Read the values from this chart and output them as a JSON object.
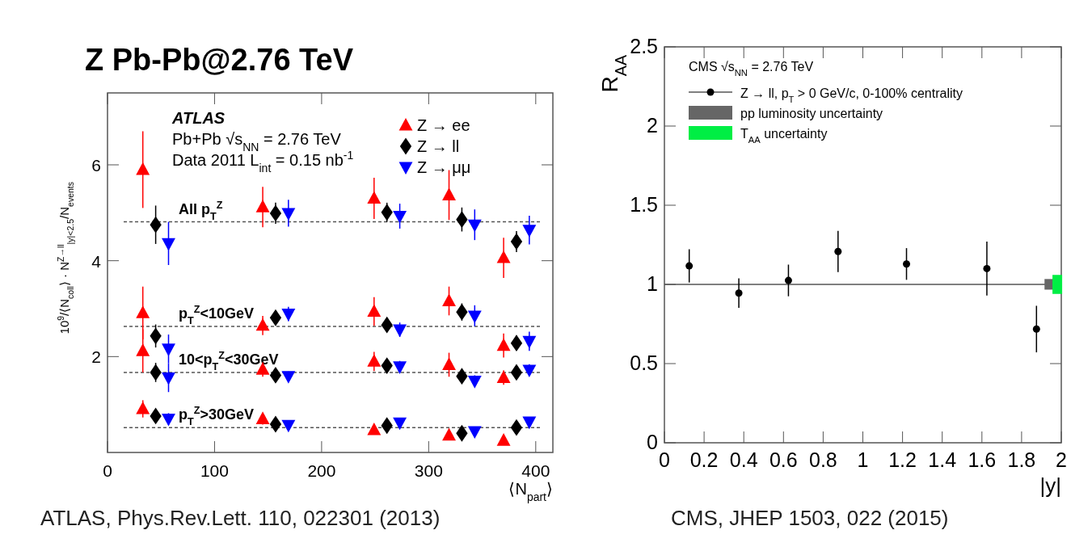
{
  "chart_data": [
    {
      "type": "scatter",
      "title": "Z Pb-Pb@2.76 TeV",
      "xlabel": "⟨N$_{part}$⟩",
      "ylabel": "10$^{9}$/⟨N$_{coll}$⟩ · N$^{Z→ll}$$_{|y|<2.5}$/N$_{events}$",
      "xlim": [
        0,
        416
      ],
      "ylim": [
        0,
        7.5
      ],
      "xticks": [
        0,
        100,
        200,
        300,
        400
      ],
      "yticks": [
        2,
        4,
        6
      ],
      "legend": "top right",
      "grid": false,
      "annotations": [
        "ATLAS",
        "Pb+Pb √s$_{NN}$ = 2.76 TeV",
        "Data 2011 L$_{int}$ = 0.15 nb$^{-1}$",
        "ATLAS, Phys.Rev.Lett. 110, 022301 (2013)"
      ],
      "ref_lines": [
        {
          "axis": "y",
          "value": 4.81,
          "label": "All p$_{T}$$^{Z}$",
          "line_style": "dashed",
          "color": "#555555"
        },
        {
          "axis": "y",
          "value": 2.63,
          "label": "p$_{T}$$^{Z}$<10GeV",
          "line_style": "dashed",
          "color": "#555555"
        },
        {
          "axis": "y",
          "value": 1.67,
          "label": "10<p$_{T}$$^{Z}$<30GeV",
          "line_style": "dashed",
          "color": "#555555"
        },
        {
          "axis": "y",
          "value": 0.52,
          "label": "p$_{T}$$^{Z}$>30GeV",
          "line_style": "dashed",
          "color": "#555555"
        }
      ],
      "series": [
        {
          "name": "Z → ee",
          "color": "#ff0000",
          "marker": "triangle",
          "x": [
            33,
            33,
            33,
            33,
            145,
            145,
            145,
            145,
            249,
            249,
            249,
            249,
            319,
            319,
            319,
            319,
            370,
            370,
            370,
            370
          ],
          "values": [
            5.9,
            2.91,
            2.12,
            0.91,
            5.12,
            2.65,
            1.73,
            0.7,
            5.3,
            2.94,
            1.9,
            0.47,
            5.37,
            3.16,
            1.83,
            0.36,
            4.06,
            2.23,
            1.56,
            0.25
          ],
          "errors": [
            0.8,
            0.55,
            0.45,
            0.18,
            0.42,
            0.2,
            0.15,
            0.12,
            0.43,
            0.3,
            0.2,
            0.04,
            0.52,
            0.3,
            0.25,
            0.04,
            0.42,
            0.25,
            0.15,
            0.04
          ]
        },
        {
          "name": "Z → ll",
          "color": "#000000",
          "marker": "diamond",
          "x": [
            45,
            45,
            45,
            45,
            157,
            157,
            157,
            157,
            261,
            261,
            261,
            261,
            331,
            331,
            331,
            331,
            382,
            382,
            382,
            382
          ],
          "values": [
            4.75,
            2.43,
            1.67,
            0.76,
            4.99,
            2.81,
            1.61,
            0.59,
            5.01,
            2.66,
            1.81,
            0.56,
            4.86,
            2.93,
            1.59,
            0.4,
            4.4,
            2.28,
            1.67,
            0.52
          ],
          "errors": [
            0.4,
            0.24,
            0.2,
            0.12,
            0.22,
            0.15,
            0.1,
            0.06,
            0.2,
            0.15,
            0.12,
            0.04,
            0.25,
            0.18,
            0.12,
            0.04,
            0.22,
            0.15,
            0.12,
            0.04
          ]
        },
        {
          "name": "Z → μμ",
          "color": "#0000ff",
          "marker": "triangle-down",
          "x": [
            57,
            57,
            57,
            57,
            169,
            169,
            169,
            169,
            273,
            273,
            273,
            273,
            343,
            343,
            343,
            343,
            394,
            394,
            394,
            394
          ],
          "values": [
            4.36,
            2.16,
            1.56,
            0.7,
            4.99,
            2.89,
            1.59,
            0.57,
            4.93,
            2.56,
            1.79,
            0.62,
            4.75,
            2.85,
            1.49,
            0.44,
            4.64,
            2.32,
            1.72,
            0.64
          ],
          "errors": [
            0.45,
            0.3,
            0.3,
            0.12,
            0.28,
            0.15,
            0.1,
            0.05,
            0.26,
            0.15,
            0.12,
            0.04,
            0.32,
            0.22,
            0.12,
            0.04,
            0.3,
            0.2,
            0.12,
            0.04
          ]
        }
      ]
    },
    {
      "type": "scatter",
      "ylabel": "R$_{AA}$",
      "xlabel": "|y|",
      "xlim": [
        0,
        2
      ],
      "ylim": [
        0,
        2.5
      ],
      "xticks": [
        0,
        0.2,
        0.4,
        0.6,
        0.8,
        1,
        1.2,
        1.4,
        1.6,
        1.8,
        2
      ],
      "yticks": [
        0,
        0.5,
        1,
        1.5,
        2,
        2.5
      ],
      "legend": "top left",
      "grid": false,
      "legend_title": "CMS √s$_{NN}$ = 2.76 TeV",
      "annotations": [
        "CMS, JHEP 1503, 022 (2015)"
      ],
      "ref_lines": [
        {
          "axis": "y",
          "value": 1,
          "line_style": "solid",
          "color": "#555555"
        }
      ],
      "series": [
        {
          "name": "Z → ll, p$_{T}$ > 0 GeV/c, 0-100% centrality",
          "color": "#000000",
          "marker": "circle",
          "x": [
            0.125,
            0.375,
            0.625,
            0.875,
            1.22,
            1.625,
            1.875
          ],
          "values": [
            1.117,
            0.945,
            1.025,
            1.208,
            1.129,
            1.1,
            0.718
          ],
          "errors": [
            0.105,
            0.093,
            0.1,
            0.13,
            0.1,
            0.17,
            0.147
          ]
        },
        {
          "type": "bar",
          "name": "pp luminosity uncertainty",
          "color": "#666666",
          "x": [
            1.94
          ],
          "base": [
            0.967
          ],
          "values": [
            0.067
          ]
        },
        {
          "type": "bar",
          "name": "T$_{AA}$ uncertainty",
          "color": "#00ee44",
          "x": [
            1.98
          ],
          "base": [
            0.94
          ],
          "values": [
            0.12
          ]
        }
      ]
    }
  ]
}
